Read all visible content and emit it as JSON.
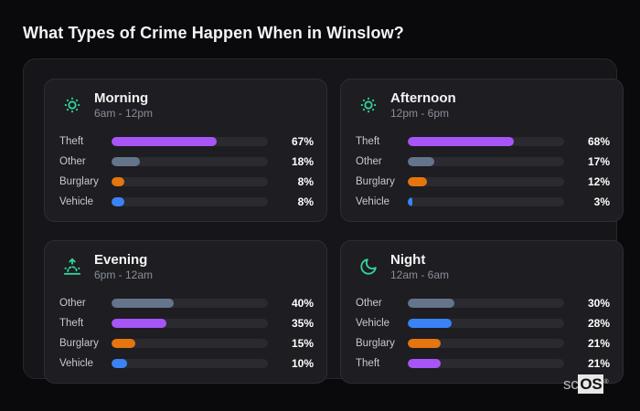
{
  "page": {
    "title": "What Types of Crime Happen When in Winslow?"
  },
  "colors": {
    "icon_accent": "#34d399",
    "track": "#2a2a30",
    "theft": "#a855f7",
    "other": "#64748b",
    "burglary": "#e5750f",
    "vehicle": "#3b82f6"
  },
  "panels": [
    {
      "id": "morning",
      "icon": "sun-icon",
      "title": "Morning",
      "subtitle": "6am - 12pm",
      "rows": [
        {
          "label": "Theft",
          "value": 67,
          "display": "67%",
          "color_key": "theft"
        },
        {
          "label": "Other",
          "value": 18,
          "display": "18%",
          "color_key": "other"
        },
        {
          "label": "Burglary",
          "value": 8,
          "display": "8%",
          "color_key": "burglary"
        },
        {
          "label": "Vehicle",
          "value": 8,
          "display": "8%",
          "color_key": "vehicle"
        }
      ]
    },
    {
      "id": "afternoon",
      "icon": "sun-icon",
      "title": "Afternoon",
      "subtitle": "12pm - 6pm",
      "rows": [
        {
          "label": "Theft",
          "value": 68,
          "display": "68%",
          "color_key": "theft"
        },
        {
          "label": "Other",
          "value": 17,
          "display": "17%",
          "color_key": "other"
        },
        {
          "label": "Burglary",
          "value": 12,
          "display": "12%",
          "color_key": "burglary"
        },
        {
          "label": "Vehicle",
          "value": 3,
          "display": "3%",
          "color_key": "vehicle"
        }
      ]
    },
    {
      "id": "evening",
      "icon": "sunrise-icon",
      "title": "Evening",
      "subtitle": "6pm - 12am",
      "rows": [
        {
          "label": "Other",
          "value": 40,
          "display": "40%",
          "color_key": "other"
        },
        {
          "label": "Theft",
          "value": 35,
          "display": "35%",
          "color_key": "theft"
        },
        {
          "label": "Burglary",
          "value": 15,
          "display": "15%",
          "color_key": "burglary"
        },
        {
          "label": "Vehicle",
          "value": 10,
          "display": "10%",
          "color_key": "vehicle"
        }
      ]
    },
    {
      "id": "night",
      "icon": "moon-icon",
      "title": "Night",
      "subtitle": "12am - 6am",
      "rows": [
        {
          "label": "Other",
          "value": 30,
          "display": "30%",
          "color_key": "other"
        },
        {
          "label": "Vehicle",
          "value": 28,
          "display": "28%",
          "color_key": "vehicle"
        },
        {
          "label": "Burglary",
          "value": 21,
          "display": "21%",
          "color_key": "burglary"
        },
        {
          "label": "Theft",
          "value": 21,
          "display": "21%",
          "color_key": "theft"
        }
      ]
    }
  ],
  "watermark": {
    "prefix": "sc",
    "brand": "OS",
    "registered": "®"
  },
  "chart_data": [
    {
      "type": "bar",
      "orientation": "horizontal",
      "title": "Morning",
      "subtitle": "6am - 12pm",
      "categories": [
        "Theft",
        "Other",
        "Burglary",
        "Vehicle"
      ],
      "values": [
        67,
        18,
        8,
        8
      ],
      "unit": "%",
      "xlim": [
        0,
        100
      ],
      "grid": false,
      "legend": false,
      "bar_colors": [
        "#a855f7",
        "#64748b",
        "#e5750f",
        "#3b82f6"
      ]
    },
    {
      "type": "bar",
      "orientation": "horizontal",
      "title": "Afternoon",
      "subtitle": "12pm - 6pm",
      "categories": [
        "Theft",
        "Other",
        "Burglary",
        "Vehicle"
      ],
      "values": [
        68,
        17,
        12,
        3
      ],
      "unit": "%",
      "xlim": [
        0,
        100
      ],
      "grid": false,
      "legend": false,
      "bar_colors": [
        "#a855f7",
        "#64748b",
        "#e5750f",
        "#3b82f6"
      ]
    },
    {
      "type": "bar",
      "orientation": "horizontal",
      "title": "Evening",
      "subtitle": "6pm - 12am",
      "categories": [
        "Other",
        "Theft",
        "Burglary",
        "Vehicle"
      ],
      "values": [
        40,
        35,
        15,
        10
      ],
      "unit": "%",
      "xlim": [
        0,
        100
      ],
      "grid": false,
      "legend": false,
      "bar_colors": [
        "#64748b",
        "#a855f7",
        "#e5750f",
        "#3b82f6"
      ]
    },
    {
      "type": "bar",
      "orientation": "horizontal",
      "title": "Night",
      "subtitle": "12am - 6am",
      "categories": [
        "Other",
        "Vehicle",
        "Burglary",
        "Theft"
      ],
      "values": [
        30,
        28,
        21,
        21
      ],
      "unit": "%",
      "xlim": [
        0,
        100
      ],
      "grid": false,
      "legend": false,
      "bar_colors": [
        "#64748b",
        "#3b82f6",
        "#e5750f",
        "#a855f7"
      ]
    }
  ]
}
